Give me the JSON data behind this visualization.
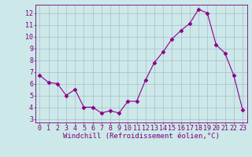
{
  "x": [
    0,
    1,
    2,
    3,
    4,
    5,
    6,
    7,
    8,
    9,
    10,
    11,
    12,
    13,
    14,
    15,
    16,
    17,
    18,
    19,
    20,
    21,
    22,
    23
  ],
  "y": [
    6.7,
    6.1,
    6.0,
    5.0,
    5.5,
    4.0,
    4.0,
    3.5,
    3.7,
    3.5,
    4.5,
    4.5,
    6.3,
    7.8,
    8.7,
    9.8,
    10.5,
    11.1,
    12.3,
    12.0,
    9.3,
    8.6,
    6.7,
    3.8
  ],
  "x_ticks": [
    0,
    1,
    2,
    3,
    4,
    5,
    6,
    7,
    8,
    9,
    10,
    11,
    12,
    13,
    14,
    15,
    16,
    17,
    18,
    19,
    20,
    21,
    22,
    23
  ],
  "x_tick_labels": [
    "0",
    "1",
    "2",
    "3",
    "4",
    "5",
    "6",
    "7",
    "8",
    "9",
    "10",
    "11",
    "12",
    "13",
    "14",
    "15",
    "16",
    "17",
    "18",
    "19",
    "20",
    "21",
    "22",
    "23"
  ],
  "y_ticks": [
    3,
    4,
    5,
    6,
    7,
    8,
    9,
    10,
    11,
    12
  ],
  "ylim": [
    2.7,
    12.7
  ],
  "xlim": [
    -0.5,
    23.5
  ],
  "xlabel": "Windchill (Refroidissement éolien,°C)",
  "line_color": "#8b008b",
  "marker": "D",
  "marker_size": 2.5,
  "bg_color": "#cce8e8",
  "grid_color": "#aabccc",
  "axis_color": "#7b007b",
  "tick_color": "#7b007b",
  "xlabel_color": "#7b007b",
  "xlabel_fontsize": 6.5,
  "tick_fontsize": 6.0
}
